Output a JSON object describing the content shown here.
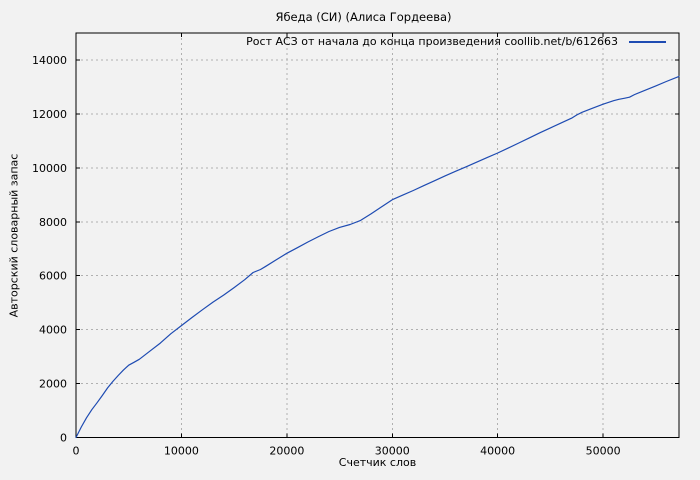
{
  "style": {
    "background": "#f2f2f2",
    "axis_color": "#000000",
    "grid_color": "#b0b0b0",
    "line_color": "#1e4bb2",
    "text_color": "#000000"
  },
  "chart_data": {
    "type": "line",
    "title": "Ябеда (СИ) (Алиса Гордеева)",
    "xlabel": "Счетчик слов",
    "ylabel": "Авторский словарный запас",
    "xlim": [
      0,
      57200
    ],
    "ylim": [
      0,
      15000
    ],
    "x_ticks": [
      0,
      10000,
      20000,
      30000,
      40000,
      50000
    ],
    "y_ticks": [
      0,
      2000,
      4000,
      6000,
      8000,
      10000,
      12000,
      14000
    ],
    "grid": true,
    "legend_position": "top-right-inside",
    "series": [
      {
        "name": "Рост АСЗ от начала до конца произведения coollib.net/b/612663",
        "color": "#1e4bb2",
        "points": [
          [
            0,
            0
          ],
          [
            500,
            390
          ],
          [
            1000,
            730
          ],
          [
            1500,
            1030
          ],
          [
            2000,
            1290
          ],
          [
            2500,
            1560
          ],
          [
            3000,
            1840
          ],
          [
            3500,
            2080
          ],
          [
            4000,
            2300
          ],
          [
            4500,
            2500
          ],
          [
            5000,
            2680
          ],
          [
            5500,
            2790
          ],
          [
            6000,
            2900
          ],
          [
            7000,
            3200
          ],
          [
            8000,
            3500
          ],
          [
            9000,
            3850
          ],
          [
            10000,
            4150
          ],
          [
            11000,
            4450
          ],
          [
            12000,
            4740
          ],
          [
            13000,
            5020
          ],
          [
            14000,
            5280
          ],
          [
            15000,
            5560
          ],
          [
            16000,
            5850
          ],
          [
            16800,
            6120
          ],
          [
            17500,
            6230
          ],
          [
            18000,
            6350
          ],
          [
            19000,
            6590
          ],
          [
            20000,
            6830
          ],
          [
            21000,
            7040
          ],
          [
            22000,
            7250
          ],
          [
            23000,
            7450
          ],
          [
            24000,
            7640
          ],
          [
            25000,
            7790
          ],
          [
            26000,
            7900
          ],
          [
            27000,
            8050
          ],
          [
            28000,
            8300
          ],
          [
            29000,
            8560
          ],
          [
            30000,
            8820
          ],
          [
            31000,
            8990
          ],
          [
            32000,
            9160
          ],
          [
            33000,
            9340
          ],
          [
            34000,
            9520
          ],
          [
            35000,
            9700
          ],
          [
            36000,
            9870
          ],
          [
            37000,
            10040
          ],
          [
            38000,
            10210
          ],
          [
            39000,
            10380
          ],
          [
            40000,
            10550
          ],
          [
            41000,
            10730
          ],
          [
            42000,
            10920
          ],
          [
            43000,
            11110
          ],
          [
            44000,
            11300
          ],
          [
            45000,
            11480
          ],
          [
            46000,
            11660
          ],
          [
            47000,
            11840
          ],
          [
            47500,
            11960
          ],
          [
            48000,
            12060
          ],
          [
            49000,
            12210
          ],
          [
            50000,
            12360
          ],
          [
            51000,
            12490
          ],
          [
            51500,
            12540
          ],
          [
            52000,
            12580
          ],
          [
            52500,
            12620
          ],
          [
            53000,
            12720
          ],
          [
            54000,
            12880
          ],
          [
            55000,
            13040
          ],
          [
            56000,
            13200
          ],
          [
            57200,
            13390
          ]
        ]
      }
    ]
  },
  "legend": {
    "label": "Рост АСЗ от начала до конца произведения coollib.net/b/612663"
  }
}
